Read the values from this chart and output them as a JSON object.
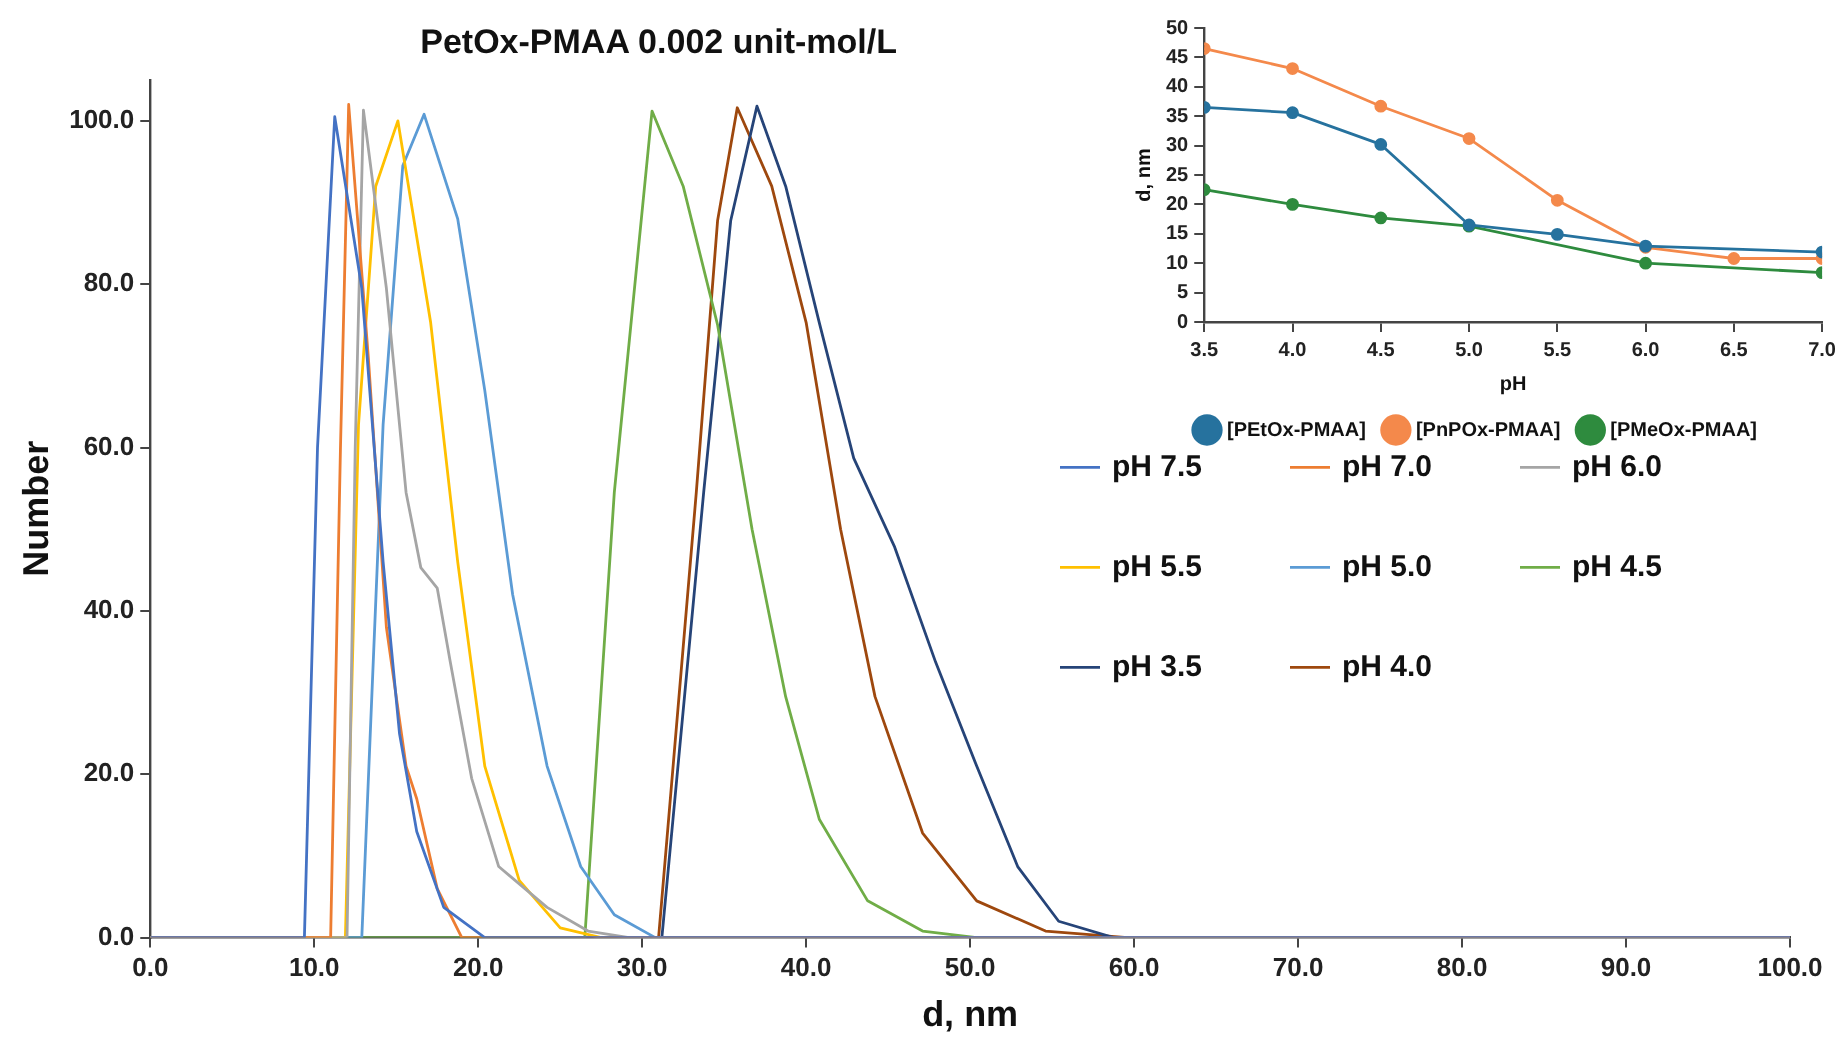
{
  "chart_data": [
    {
      "type": "line",
      "title": "PetOx-PMAA 0.002 unit-mol/L",
      "xlabel": "d, nm",
      "ylabel": "Number",
      "xlim": [
        0,
        100
      ],
      "ylim": [
        0,
        105
      ],
      "xticks": [
        {
          "value": 0,
          "label": "0.0"
        },
        {
          "value": 10,
          "label": "10.0"
        },
        {
          "value": 20,
          "label": "20.0"
        },
        {
          "value": 30,
          "label": "30.0"
        },
        {
          "value": 40,
          "label": "40.0"
        },
        {
          "value": 50,
          "label": "50.0"
        },
        {
          "value": 60,
          "label": "60.0"
        },
        {
          "value": 70,
          "label": "70.0"
        },
        {
          "value": 80,
          "label": "80.0"
        },
        {
          "value": 90,
          "label": "90.0"
        },
        {
          "value": 100,
          "label": "100.0"
        }
      ],
      "yticks": [
        {
          "value": 0,
          "label": "0.0"
        },
        {
          "value": 20,
          "label": "20.0"
        },
        {
          "value": 40,
          "label": "40.0"
        },
        {
          "value": 60,
          "label": "60.0"
        },
        {
          "value": 80,
          "label": "80.0"
        },
        {
          "value": 100,
          "label": "100.0"
        }
      ],
      "grid": false,
      "legend": "right",
      "marker": "none",
      "series": [
        {
          "name": "pH 7.5",
          "color": "#4472c4",
          "x": [
            0,
            9.4,
            10.2,
            11.25,
            12.9,
            14.2,
            15.2,
            16.25,
            17.9,
            20.4,
            100
          ],
          "values": [
            0,
            0,
            60,
            100.5,
            79.5,
            46,
            25,
            13,
            3.7,
            0,
            0
          ]
        },
        {
          "name": "pH 7.0",
          "color": "#ed7d31",
          "x": [
            0,
            11,
            11.6,
            12.1,
            13.3,
            14.4,
            15.6,
            16.25,
            17.5,
            19,
            100
          ],
          "values": [
            0,
            0,
            60,
            102,
            71,
            38,
            21,
            17,
            6,
            0,
            0
          ]
        },
        {
          "name": "pH 6.0",
          "color": "#a5a5a5",
          "x": [
            0,
            12,
            12.5,
            13,
            14.4,
            15.6,
            16.5,
            17.5,
            18.3,
            19.6,
            21.25,
            24.2,
            26.7,
            29.2,
            100
          ],
          "values": [
            0,
            0,
            60,
            101.3,
            79.5,
            54.5,
            45.3,
            42.8,
            33.7,
            19.5,
            8.7,
            3.7,
            0.8,
            0,
            0
          ]
        },
        {
          "name": "pH 5.5",
          "color": "#ffc000",
          "x": [
            0,
            11.9,
            12.7,
            13.75,
            15.1,
            17.1,
            18.75,
            20.4,
            22.5,
            25,
            27.5,
            100
          ],
          "values": [
            0,
            0,
            62.8,
            92,
            100,
            75.3,
            46,
            21,
            7,
            1.2,
            0,
            0
          ]
        },
        {
          "name": "pH 5.0",
          "color": "#5b9bd5",
          "x": [
            0,
            12.9,
            14.2,
            15.4,
            16.7,
            18.75,
            20.4,
            22.1,
            24.2,
            26.25,
            28.3,
            30.8,
            100
          ],
          "values": [
            0,
            0,
            62.8,
            94.5,
            100.8,
            88,
            67,
            42,
            21,
            8.7,
            2.8,
            0,
            0
          ]
        },
        {
          "name": "pH 4.5",
          "color": "#70ad47",
          "x": [
            0,
            26.5,
            28.3,
            30.6,
            32.5,
            34.6,
            36.7,
            38.75,
            40.8,
            43.75,
            47.1,
            50.4,
            100
          ],
          "values": [
            0,
            0,
            54.5,
            101.2,
            92,
            75,
            50,
            29.5,
            14.5,
            4.5,
            0.8,
            0,
            0
          ]
        },
        {
          "name": "pH 3.5",
          "color": "#264478",
          "x": [
            0,
            31.2,
            33.75,
            35.4,
            37,
            38.75,
            40.8,
            42.9,
            45.4,
            47.9,
            50.4,
            52.9,
            55.4,
            58.75,
            100
          ],
          "values": [
            0,
            0,
            54.5,
            87.8,
            101.8,
            92,
            75.3,
            58.7,
            47.8,
            33.7,
            21,
            8.7,
            2,
            0,
            0
          ]
        },
        {
          "name": "pH 4.0",
          "color": "#9e480e",
          "x": [
            0,
            31,
            33.3,
            34.6,
            35.8,
            37.9,
            40,
            42.1,
            44.2,
            47.1,
            50.4,
            54.6,
            59.6,
            100
          ],
          "values": [
            0,
            0,
            54.5,
            87.8,
            101.6,
            92,
            75.3,
            50,
            29.5,
            12.8,
            4.5,
            0.8,
            0,
            0
          ]
        }
      ]
    },
    {
      "type": "line",
      "xlabel": "pH",
      "ylabel": "d, nm",
      "xlim": [
        3.5,
        7
      ],
      "ylim": [
        0,
        50
      ],
      "xticks": [
        3.5,
        {
          "value": 4,
          "label": "4.0"
        },
        4.5,
        {
          "value": 5,
          "label": "5.0"
        },
        5.5,
        {
          "value": 6,
          "label": "6.0"
        },
        6.5,
        {
          "value": 7,
          "label": "7.0"
        }
      ],
      "yticks": [
        0,
        5,
        10,
        15,
        20,
        25,
        30,
        35,
        40,
        45,
        50
      ],
      "grid": false,
      "legend": "bottom",
      "marker": "circle",
      "series": [
        {
          "name": "[PEtOx-PMAA]",
          "color": "#26729e",
          "x": [
            3.5,
            4,
            4.5,
            5,
            5.5,
            6,
            7
          ],
          "values": [
            36.5,
            35.6,
            30.2,
            16.5,
            14.9,
            12.9,
            11.9
          ]
        },
        {
          "name": "[PnPOx-PMAA]",
          "color": "#f4894b",
          "x": [
            3.5,
            4,
            4.5,
            5,
            5.5,
            6,
            6.5,
            7
          ],
          "values": [
            46.5,
            43.1,
            36.7,
            31.2,
            20.7,
            12.7,
            10.8,
            10.8
          ]
        },
        {
          "name": "[PMeOx-PMAA]",
          "color": "#2e8b3e",
          "x": [
            3.5,
            4,
            4.5,
            5,
            6,
            7
          ],
          "values": [
            22.5,
            20,
            17.7,
            16.3,
            10,
            8.4
          ]
        }
      ]
    }
  ]
}
